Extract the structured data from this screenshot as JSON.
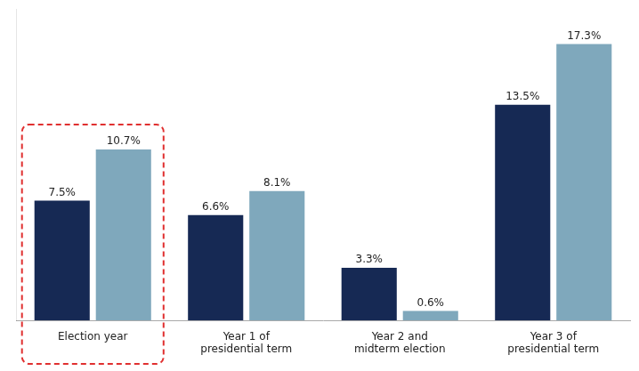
{
  "chart_data": {
    "type": "bar",
    "categories": [
      "Election year",
      "Year 1 of\npresidential term",
      "Year 2 and\nmidterm election",
      "Year 3 of\npresidential term"
    ],
    "series": [
      {
        "color": "#162954",
        "values": [
          7.5,
          6.6,
          3.3,
          13.5
        ],
        "value_labels": [
          "7.5%",
          "6.6%",
          "3.3%",
          "13.5%"
        ]
      },
      {
        "color": "#7fa8bc",
        "values": [
          10.7,
          8.1,
          0.6,
          17.3
        ],
        "value_labels": [
          "10.7%",
          "8.1%",
          "0.6%",
          "17.3%"
        ]
      }
    ],
    "ylim": [
      0,
      19.5
    ],
    "grid": false,
    "tick_labels": "x",
    "data_labels": true,
    "highlight": {
      "category": "Election year",
      "color": "#e03030",
      "line_style": "dashed"
    }
  }
}
